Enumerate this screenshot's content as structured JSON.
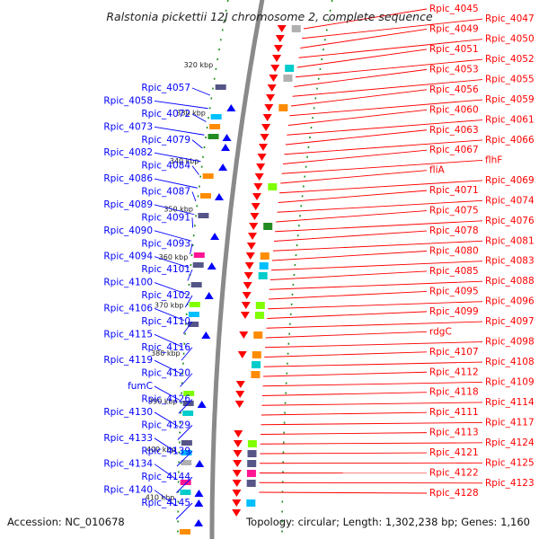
{
  "title": "Ralstonia pickettii 12J chromosome 2, complete sequence",
  "accession": "Accession: NC_010678",
  "topology": "Topology: circular; Length: 1,302,238 bp; Genes: 1,160",
  "colors": {
    "forward": "#ff0000",
    "reverse": "#0000ff",
    "backbone": "#8a8a8a",
    "dots": "#1a8c1a"
  },
  "ticks": [
    "320 kbp",
    "330 kbp",
    "340 kbp",
    "350 kbp",
    "360 kbp",
    "370 kbp",
    "380 kbp",
    "390 kbp",
    "400 kbp",
    "410 kbp"
  ],
  "right_labels": [
    "Rpic_4045",
    "Rpic_4047",
    "Rpic_4049",
    "Rpic_4050",
    "Rpic_4051",
    "Rpic_4052",
    "Rpic_4053",
    "Rpic_4055",
    "Rpic_4056",
    "Rpic_4059",
    "Rpic_4060",
    "Rpic_4061",
    "Rpic_4063",
    "Rpic_4066",
    "Rpic_4067",
    "flhF",
    "fliA",
    "Rpic_4069",
    "Rpic_4071",
    "Rpic_4074",
    "Rpic_4075",
    "Rpic_4076",
    "Rpic_4078",
    "Rpic_4081",
    "Rpic_4080",
    "Rpic_4083",
    "Rpic_4085",
    "Rpic_4088",
    "Rpic_4095",
    "Rpic_4096",
    "Rpic_4099",
    "Rpic_4097",
    "rdgC",
    "Rpic_4098",
    "Rpic_4107",
    "Rpic_4108",
    "Rpic_4112",
    "Rpic_4109",
    "Rpic_4118",
    "Rpic_4114",
    "Rpic_4111",
    "Rpic_4117",
    "Rpic_4113",
    "Rpic_4124",
    "Rpic_4121",
    "Rpic_4125",
    "Rpic_4122",
    "Rpic_4123",
    "Rpic_4128"
  ],
  "left_labels": [
    "Rpic_4057",
    "Rpic_4058",
    "Rpic_4072",
    "Rpic_4073",
    "Rpic_4079",
    "Rpic_4082",
    "Rpic_4084",
    "Rpic_4086",
    "Rpic_4087",
    "Rpic_4089",
    "Rpic_4091",
    "Rpic_4090",
    "Rpic_4093",
    "Rpic_4094",
    "Rpic_4101",
    "Rpic_4100",
    "Rpic_4102",
    "Rpic_4106",
    "Rpic_4110",
    "Rpic_4115",
    "Rpic_4116",
    "Rpic_4119",
    "Rpic_4120",
    "fumC",
    "Rpic_4126",
    "Rpic_4130",
    "Rpic_4129",
    "Rpic_4133",
    "Rpic_4139",
    "Rpic_4134",
    "Rpic_4144",
    "Rpic_4140",
    "Rpic_4145"
  ]
}
